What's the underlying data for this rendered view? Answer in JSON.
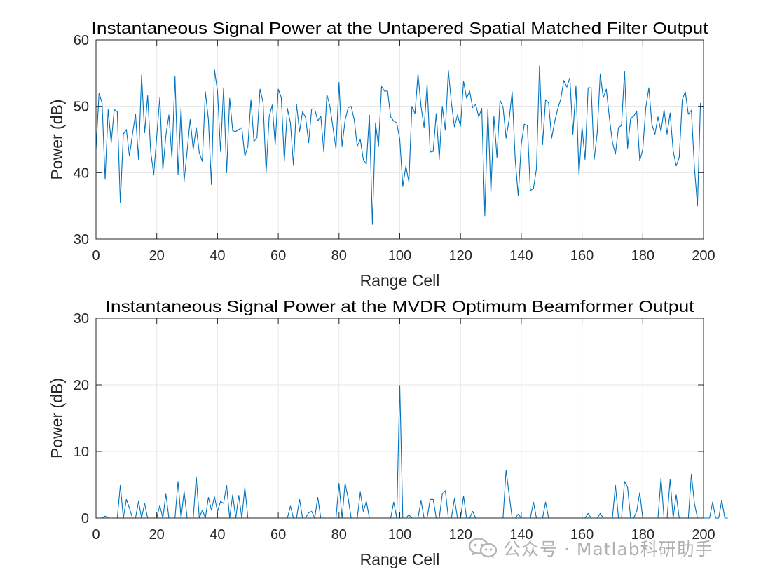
{
  "chart_data": [
    {
      "type": "line",
      "title": "Instantaneous Signal Power at the Untapered Spatial Matched Filter Output",
      "xlabel": "Range Cell",
      "ylabel": "Power (dB)",
      "xlim": [
        0,
        200
      ],
      "ylim": [
        30,
        60
      ],
      "xticks": [
        0,
        20,
        40,
        60,
        80,
        100,
        120,
        140,
        160,
        180,
        200
      ],
      "yticks": [
        30,
        40,
        50,
        60
      ],
      "grid": true,
      "color": "#0072bd",
      "x_start": 0,
      "x_step": 1,
      "values": [
        43.5,
        52.0,
        50.5,
        39.0,
        49.5,
        44.5,
        49.5,
        49.2,
        35.5,
        45.8,
        46.5,
        42.5,
        45.8,
        48.8,
        42.0,
        54.7,
        46.0,
        51.6,
        43.2,
        39.7,
        45.5,
        51.3,
        40.4,
        45.6,
        48.7,
        42.2,
        54.5,
        39.7,
        49.8,
        38.7,
        43.3,
        48.0,
        43.5,
        46.8,
        43.0,
        41.7,
        52.2,
        48.0,
        38.2,
        55.5,
        52.3,
        43.2,
        52.8,
        40.0,
        51.2,
        46.3,
        46.2,
        46.5,
        46.8,
        42.5,
        44.0,
        51.0,
        44.7,
        45.3,
        52.6,
        50.6,
        40.0,
        48.4,
        50.2,
        44.2,
        52.6,
        51.3,
        41.7,
        49.7,
        47.5,
        41.1,
        50.3,
        46.2,
        49.2,
        48.3,
        44.5,
        49.6,
        49.6,
        47.8,
        48.5,
        43.1,
        51.8,
        50.0,
        46.8,
        43.6,
        53.6,
        44.0,
        47.9,
        49.8,
        50.0,
        48.0,
        44.0,
        45.0,
        42.0,
        41.3,
        48.7,
        32.2,
        47.5,
        44.0,
        53.0,
        52.3,
        52.3,
        48.4,
        47.8,
        47.5,
        45.0,
        37.9,
        41.0,
        38.6,
        50.0,
        48.9,
        54.9,
        50.0,
        46.8,
        53.3,
        43.1,
        43.2,
        48.9,
        42.0,
        50.0,
        46.4,
        55.4,
        50.5,
        46.9,
        48.7,
        47.0,
        53.8,
        51.2,
        52.3,
        49.8,
        50.3,
        48.4,
        49.7,
        33.5,
        49.6,
        37.0,
        48.5,
        42.3,
        50.9,
        49.9,
        45.2,
        48.0,
        52.2,
        42.0,
        36.5,
        44.3,
        47.3,
        47.1,
        37.3,
        37.6,
        40.6,
        56.1,
        44.2,
        51.0,
        50.5,
        45.2,
        47.7,
        49.6,
        51.1,
        53.9,
        52.9,
        54.3,
        45.8,
        53.1,
        39.7,
        46.9,
        42.0,
        52.8,
        52.8,
        42.0,
        46.0,
        54.9,
        51.3,
        52.6,
        48.3,
        44.6,
        42.8,
        46.8,
        47.1,
        55.3,
        43.7,
        48.2,
        48.5,
        49.3,
        41.8,
        43.5,
        49.8,
        52.8,
        47.3,
        45.8,
        48.4,
        46.2,
        49.5,
        45.8,
        49.0,
        43.3,
        41.0,
        42.3,
        51.0,
        52.2,
        48.8,
        49.4,
        40.8,
        35.0,
        50.5
      ]
    },
    {
      "type": "line",
      "title": "Instantaneous Signal Power at the MVDR Optimum Beamformer Output",
      "xlabel": "Range Cell",
      "ylabel": "Power (dB)",
      "xlim": [
        0,
        200
      ],
      "ylim": [
        0,
        30
      ],
      "xticks": [
        0,
        20,
        40,
        60,
        80,
        100,
        120,
        140,
        160,
        180,
        200
      ],
      "yticks": [
        0,
        10,
        20,
        30
      ],
      "grid": true,
      "color": "#0072bd",
      "x_start": 0,
      "x_step": 1,
      "values": [
        0,
        0,
        0,
        0.3,
        0,
        0,
        0,
        0,
        4.9,
        0,
        2.8,
        1.5,
        0,
        0,
        2.5,
        0,
        2.2,
        0,
        0,
        0,
        0,
        1.9,
        0,
        3.6,
        0,
        0,
        0,
        5.5,
        0,
        4.0,
        0,
        0,
        0,
        6.2,
        0,
        1.2,
        0,
        3.1,
        1.2,
        3.2,
        1.0,
        2.5,
        2.2,
        4.9,
        0,
        3.5,
        0,
        3.4,
        0,
        4.6,
        0,
        0,
        0,
        0,
        0,
        0,
        0,
        0,
        0,
        0,
        0,
        0,
        0,
        0,
        1.8,
        0,
        0,
        2.8,
        0,
        0,
        0.8,
        1.0,
        0,
        3.1,
        0,
        0,
        0,
        0,
        0,
        0,
        5.2,
        0,
        5.2,
        3.0,
        0,
        0,
        0,
        3.9,
        1.0,
        2.5,
        0,
        0,
        0,
        0,
        0,
        0,
        0,
        0,
        2.4,
        0,
        19.9,
        0,
        0,
        0.5,
        0,
        0,
        0,
        2.6,
        0,
        0,
        2.8,
        2.8,
        0,
        0,
        3.6,
        4.1,
        0,
        0,
        2.9,
        0,
        0,
        3.3,
        0,
        0,
        1.0,
        0,
        0,
        0,
        0,
        0,
        0,
        0,
        0,
        0,
        0,
        7.2,
        3.5,
        0,
        0,
        0.6,
        0,
        0,
        0,
        0,
        2.4,
        0,
        0,
        0,
        2.4,
        0,
        0,
        0,
        0,
        0,
        0,
        0,
        0,
        0,
        0,
        0,
        0,
        0,
        0.7,
        0,
        0,
        0,
        0.7,
        0,
        0,
        0,
        0,
        4.9,
        0,
        0,
        5.5,
        4.6,
        0,
        0,
        1.0,
        3.8,
        0,
        0,
        0,
        0,
        0,
        0,
        6.0,
        0,
        0,
        5.8,
        0,
        3.5,
        0,
        0,
        0,
        0,
        6.6,
        2.2,
        0,
        0,
        0,
        0,
        0,
        2.4,
        0,
        0,
        2.7,
        0,
        0
      ]
    }
  ],
  "watermark": {
    "icon": "wechat-icon",
    "text": "公众号 · Matlab科研助手"
  }
}
